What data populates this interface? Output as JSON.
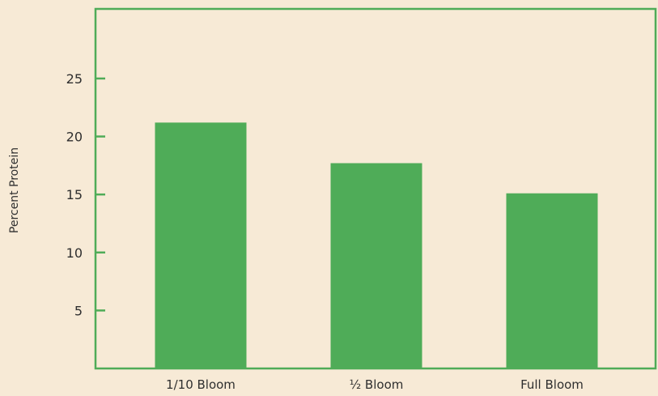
{
  "chart_data": {
    "type": "bar",
    "title": "",
    "xlabel": "",
    "ylabel": "Percent Protein",
    "categories": [
      "1/10 Bloom",
      "½ Bloom",
      "Full Bloom"
    ],
    "values": [
      21.2,
      17.7,
      15.1
    ],
    "ylim": [
      0,
      31
    ],
    "yticks": [
      5,
      10,
      15,
      20,
      25
    ],
    "grid": false,
    "legend": "none",
    "colors": {
      "bar": "#4fac58",
      "axis": "#4fac58",
      "background": "#f7ead6",
      "text": "#2f2f2f"
    }
  }
}
